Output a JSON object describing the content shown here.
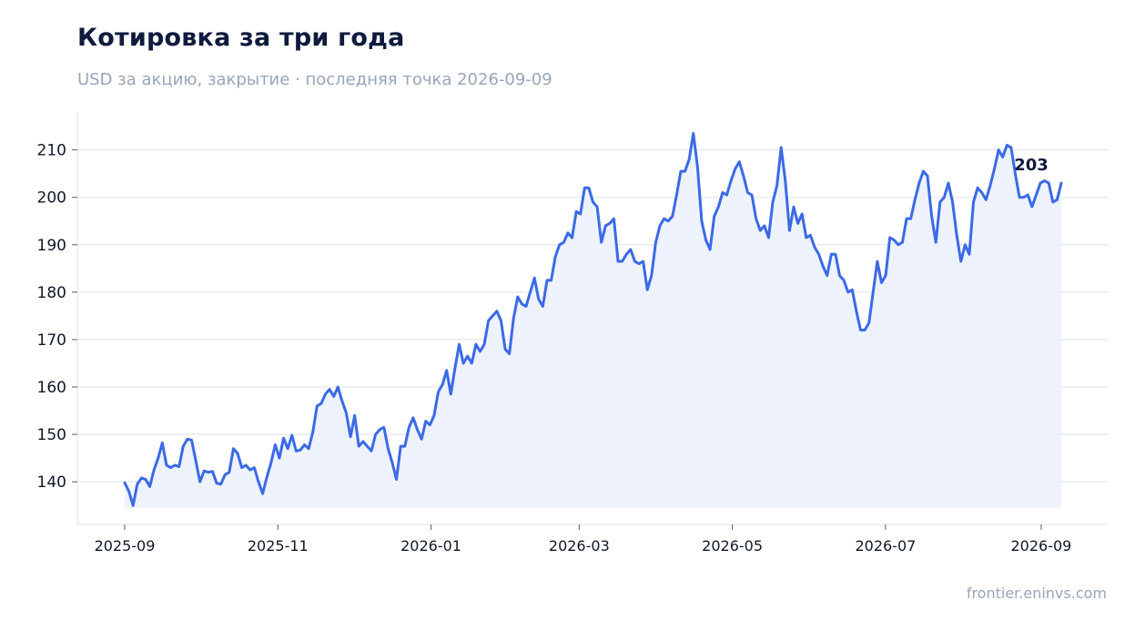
{
  "chart_data": {
    "type": "area",
    "title": "Котировка за три года",
    "subtitle": "USD за акцию, закрытие · последняя точка 2026-09-09",
    "xlabel": "",
    "ylabel": "",
    "x_range": [
      "2025-09-01",
      "2026-09-09"
    ],
    "ylim": [
      131,
      218
    ],
    "y_ticks": [
      140,
      150,
      160,
      170,
      180,
      190,
      200,
      210
    ],
    "x_ticks": [
      "2025-09",
      "2025-11",
      "2026-01",
      "2026-03",
      "2026-05",
      "2026-07",
      "2026-09"
    ],
    "grid": "horizontal",
    "line_color": "#3b6ae6",
    "fill_color": "#edf2fd",
    "last_label": "203",
    "series": [
      {
        "points": [
          [
            "2025-09-01",
            139.8
          ],
          [
            "2025-09-03",
            138.0
          ],
          [
            "2025-09-05",
            135.0
          ],
          [
            "2025-09-07",
            139.5
          ],
          [
            "2025-09-09",
            140.8
          ],
          [
            "2025-09-11",
            140.5
          ],
          [
            "2025-09-13",
            139.0
          ],
          [
            "2025-09-15",
            142.5
          ],
          [
            "2025-09-17",
            145.0
          ],
          [
            "2025-09-19",
            148.2
          ],
          [
            "2025-09-21",
            143.5
          ],
          [
            "2025-09-23",
            143.0
          ],
          [
            "2025-09-25",
            143.5
          ],
          [
            "2025-09-27",
            143.2
          ],
          [
            "2025-09-29",
            147.5
          ],
          [
            "2025-10-01",
            149.0
          ],
          [
            "2025-10-03",
            148.8
          ],
          [
            "2025-10-05",
            144.5
          ],
          [
            "2025-10-07",
            140.0
          ],
          [
            "2025-10-09",
            142.3
          ],
          [
            "2025-10-11",
            142.0
          ],
          [
            "2025-10-13",
            142.2
          ],
          [
            "2025-10-15",
            139.7
          ],
          [
            "2025-10-17",
            139.5
          ],
          [
            "2025-10-19",
            141.5
          ],
          [
            "2025-10-21",
            142.0
          ],
          [
            "2025-10-23",
            147.0
          ],
          [
            "2025-10-25",
            146.0
          ],
          [
            "2025-10-27",
            143.0
          ],
          [
            "2025-10-29",
            143.5
          ],
          [
            "2025-10-31",
            142.5
          ],
          [
            "2025-11-02",
            143.0
          ],
          [
            "2025-11-04",
            140.0
          ],
          [
            "2025-11-06",
            137.5
          ],
          [
            "2025-11-08",
            141.0
          ],
          [
            "2025-11-10",
            144.0
          ],
          [
            "2025-11-12",
            147.8
          ],
          [
            "2025-11-14",
            145.0
          ],
          [
            "2025-11-16",
            149.2
          ],
          [
            "2025-11-18",
            147.0
          ],
          [
            "2025-11-20",
            149.8
          ],
          [
            "2025-11-22",
            146.5
          ],
          [
            "2025-11-24",
            146.7
          ],
          [
            "2025-11-26",
            147.8
          ],
          [
            "2025-11-28",
            147.0
          ],
          [
            "2025-11-30",
            150.5
          ],
          [
            "2025-12-02",
            156.0
          ],
          [
            "2025-12-04",
            156.5
          ],
          [
            "2025-12-06",
            158.5
          ],
          [
            "2025-12-08",
            159.5
          ],
          [
            "2025-12-10",
            158.0
          ],
          [
            "2025-12-12",
            160.0
          ],
          [
            "2025-12-14",
            157.0
          ],
          [
            "2025-12-16",
            154.5
          ],
          [
            "2025-12-18",
            149.5
          ],
          [
            "2025-12-20",
            154.0
          ],
          [
            "2025-12-22",
            147.5
          ],
          [
            "2025-12-24",
            148.5
          ],
          [
            "2025-12-26",
            147.5
          ],
          [
            "2025-12-28",
            146.5
          ],
          [
            "2025-12-30",
            150.0
          ],
          [
            "2026-01-01",
            151.0
          ],
          [
            "2026-01-03",
            151.5
          ],
          [
            "2026-01-05",
            147.0
          ],
          [
            "2026-01-07",
            144.0
          ],
          [
            "2026-01-09",
            140.5
          ],
          [
            "2026-01-11",
            147.5
          ],
          [
            "2026-01-13",
            147.5
          ],
          [
            "2026-01-15",
            151.5
          ],
          [
            "2026-01-17",
            153.5
          ],
          [
            "2026-01-19",
            151.0
          ],
          [
            "2026-01-21",
            149.0
          ],
          [
            "2026-01-23",
            152.8
          ],
          [
            "2026-01-25",
            152.0
          ],
          [
            "2026-01-27",
            154.0
          ],
          [
            "2026-01-29",
            159.0
          ],
          [
            "2026-01-31",
            160.5
          ],
          [
            "2026-02-02",
            163.5
          ],
          [
            "2026-02-04",
            158.5
          ],
          [
            "2026-02-06",
            164.0
          ],
          [
            "2026-02-08",
            169.0
          ],
          [
            "2026-02-10",
            165.0
          ],
          [
            "2026-02-12",
            166.5
          ],
          [
            "2026-02-14",
            165.0
          ],
          [
            "2026-02-16",
            169.0
          ],
          [
            "2026-02-18",
            167.5
          ],
          [
            "2026-02-20",
            169.0
          ],
          [
            "2026-02-22",
            174.0
          ],
          [
            "2026-02-24",
            175.0
          ],
          [
            "2026-02-26",
            176.0
          ],
          [
            "2026-02-28",
            174.0
          ],
          [
            "2026-03-02",
            168.0
          ],
          [
            "2026-03-04",
            167.0
          ],
          [
            "2026-03-06",
            174.5
          ],
          [
            "2026-03-08",
            179.0
          ],
          [
            "2026-03-10",
            177.5
          ],
          [
            "2026-03-12",
            177.0
          ],
          [
            "2026-03-14",
            180.0
          ],
          [
            "2026-03-16",
            183.0
          ],
          [
            "2026-03-18",
            178.5
          ],
          [
            "2026-03-20",
            177.0
          ],
          [
            "2026-03-22",
            182.5
          ],
          [
            "2026-03-24",
            182.5
          ],
          [
            "2026-03-26",
            187.5
          ],
          [
            "2026-03-28",
            190.0
          ],
          [
            "2026-03-30",
            190.5
          ],
          [
            "2026-04-01",
            192.5
          ],
          [
            "2026-04-03",
            191.5
          ],
          [
            "2026-04-05",
            197.0
          ],
          [
            "2026-04-07",
            196.5
          ],
          [
            "2026-04-09",
            202.0
          ],
          [
            "2026-04-11",
            202.0
          ],
          [
            "2026-04-13",
            199.0
          ],
          [
            "2026-04-15",
            198.0
          ],
          [
            "2026-04-17",
            190.5
          ],
          [
            "2026-04-19",
            194.0
          ],
          [
            "2026-04-21",
            194.5
          ],
          [
            "2026-04-23",
            195.5
          ],
          [
            "2026-04-25",
            186.5
          ],
          [
            "2026-04-27",
            186.5
          ],
          [
            "2026-04-29",
            188.0
          ],
          [
            "2026-05-01",
            189.0
          ],
          [
            "2026-05-03",
            186.5
          ],
          [
            "2026-05-05",
            186.0
          ],
          [
            "2026-05-07",
            186.5
          ],
          [
            "2026-05-09",
            180.5
          ],
          [
            "2026-05-11",
            183.5
          ],
          [
            "2026-05-13",
            190.5
          ],
          [
            "2026-05-15",
            194.0
          ],
          [
            "2026-05-17",
            195.5
          ],
          [
            "2026-05-19",
            195.0
          ],
          [
            "2026-05-21",
            196.0
          ],
          [
            "2026-05-23",
            200.5
          ],
          [
            "2026-05-25",
            205.5
          ],
          [
            "2026-05-27",
            205.5
          ],
          [
            "2026-05-29",
            208.0
          ],
          [
            "2026-05-31",
            213.5
          ],
          [
            "2026-06-02",
            206.5
          ],
          [
            "2026-06-04",
            195.0
          ],
          [
            "2026-06-06",
            191.0
          ],
          [
            "2026-06-08",
            189.0
          ],
          [
            "2026-06-10",
            196.0
          ],
          [
            "2026-06-12",
            198.0
          ],
          [
            "2026-06-14",
            201.0
          ],
          [
            "2026-06-16",
            200.5
          ],
          [
            "2026-06-18",
            203.5
          ],
          [
            "2026-06-20",
            206.0
          ],
          [
            "2026-06-22",
            207.5
          ],
          [
            "2026-06-24",
            204.5
          ],
          [
            "2026-06-26",
            201.0
          ],
          [
            "2026-06-28",
            200.5
          ],
          [
            "2026-06-30",
            195.5
          ],
          [
            "2026-07-02",
            193.0
          ],
          [
            "2026-07-04",
            194.0
          ],
          [
            "2026-07-06",
            191.5
          ],
          [
            "2026-07-08",
            199.0
          ],
          [
            "2026-07-10",
            202.5
          ],
          [
            "2026-07-12",
            210.5
          ],
          [
            "2026-07-14",
            203.5
          ],
          [
            "2026-07-16",
            193.0
          ],
          [
            "2026-07-18",
            198.0
          ],
          [
            "2026-07-20",
            194.5
          ],
          [
            "2026-07-22",
            196.5
          ],
          [
            "2026-07-24",
            191.5
          ],
          [
            "2026-07-26",
            192.0
          ],
          [
            "2026-07-28",
            189.5
          ],
          [
            "2026-07-30",
            188.0
          ],
          [
            "2026-08-01",
            185.5
          ],
          [
            "2026-08-03",
            183.5
          ],
          [
            "2026-08-05",
            188.0
          ],
          [
            "2026-08-07",
            188.0
          ],
          [
            "2026-08-09",
            183.5
          ],
          [
            "2026-08-11",
            182.5
          ],
          [
            "2026-08-13",
            180.0
          ],
          [
            "2026-08-15",
            180.5
          ],
          [
            "2026-08-17",
            176.0
          ],
          [
            "2026-08-19",
            172.0
          ],
          [
            "2026-08-21",
            172.0
          ],
          [
            "2026-08-23",
            173.5
          ],
          [
            "2026-08-25",
            180.0
          ],
          [
            "2026-08-27",
            186.5
          ],
          [
            "2026-08-29",
            182.0
          ],
          [
            "2026-08-31",
            183.5
          ],
          [
            "2026-09-01",
            191.5
          ],
          [
            "2026-09-02",
            191.0
          ],
          [
            "2026-09-03",
            190.0
          ],
          [
            "2026-09-04",
            190.5
          ],
          [
            "2026-09-05",
            195.5
          ],
          [
            "2026-09-06",
            195.5
          ],
          [
            "2026-09-06",
            199.5
          ],
          [
            "2026-09-07",
            203.0
          ],
          [
            "2026-09-07",
            205.5
          ],
          [
            "2026-09-08",
            204.5
          ],
          [
            "2026-09-08",
            196.0
          ],
          [
            "2026-09-08",
            190.5
          ],
          [
            "2026-09-08",
            199.0
          ],
          [
            "2026-09-08",
            200.0
          ],
          [
            "2026-09-08",
            203.0
          ],
          [
            "2026-09-08",
            199.0
          ],
          [
            "2026-09-08",
            192.0
          ],
          [
            "2026-09-08",
            186.5
          ],
          [
            "2026-09-08",
            190.0
          ],
          [
            "2026-09-08",
            188.0
          ],
          [
            "2026-09-09",
            199.0
          ],
          [
            "2026-09-09",
            202.0
          ],
          [
            "2026-09-09",
            201.0
          ],
          [
            "2026-09-09",
            199.5
          ],
          [
            "2026-09-09",
            202.5
          ],
          [
            "2026-09-09",
            206.0
          ],
          [
            "2026-09-09",
            210.0
          ],
          [
            "2026-09-09",
            208.5
          ],
          [
            "2026-09-09",
            211.0
          ],
          [
            "2026-09-09",
            210.5
          ],
          [
            "2026-09-09",
            205.0
          ],
          [
            "2026-09-09",
            200.0
          ],
          [
            "2026-09-09",
            200.0
          ],
          [
            "2026-09-09",
            200.5
          ],
          [
            "2026-09-09",
            198.0
          ],
          [
            "2026-09-09",
            200.5
          ],
          [
            "2026-09-09",
            203.0
          ],
          [
            "2026-09-09",
            203.5
          ],
          [
            "2026-09-09",
            203.0
          ],
          [
            "2026-09-09",
            199.0
          ],
          [
            "2026-09-09",
            199.5
          ],
          [
            "2026-09-09",
            203.0
          ]
        ]
      }
    ]
  },
  "footer": "frontier.eninvs.com"
}
